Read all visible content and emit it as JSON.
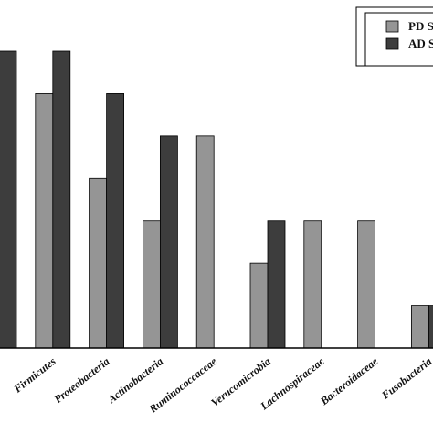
{
  "chart_data": {
    "type": "bar",
    "categories": [
      "",
      "Firmicutes",
      "Proteobacteria",
      "Actinobacteria",
      "Ruminococcaceae",
      "Verucomicrobia",
      "Lachnospiraceae",
      "Bacteroidaceae",
      "Fusobacteria"
    ],
    "series": [
      {
        "name": "PD S",
        "color": "#959595",
        "values": [
          null,
          6,
          4,
          3,
          5,
          2,
          3,
          3,
          1
        ]
      },
      {
        "name": "AD S",
        "color": "#3d3d3d",
        "values": [
          7,
          7,
          6,
          5,
          0,
          3,
          0,
          0,
          1
        ]
      }
    ],
    "ylim": [
      0,
      7
    ],
    "legend": "top-right",
    "grid": false
  }
}
